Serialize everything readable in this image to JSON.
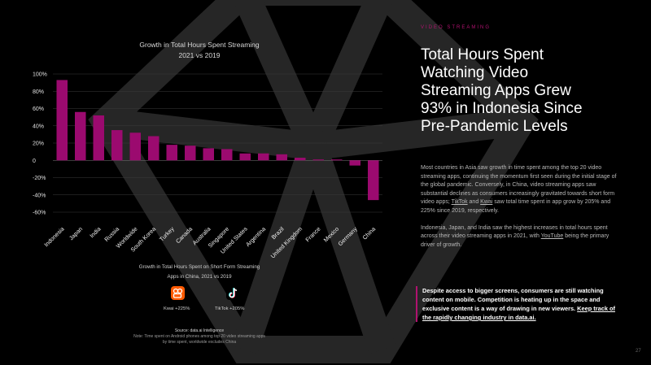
{
  "section_tag": "VIDEO STREAMING",
  "headline": [
    "Total Hours Spent",
    "Watching Video",
    "Streaming Apps Grew",
    "93% in Indonesia Since",
    "Pre-Pandemic Levels"
  ],
  "body": {
    "p1_a": "Most countries in Asia saw growth in time spent among the top 20 video streaming apps, continuing the momentum first seen during the initial stage of the global pandemic. Conversely, in China, video streaming apps saw substantial declines as consumers increasingly gravitated towards short form video apps; ",
    "p1_link1": "TikTok",
    "p1_and": " and ",
    "p1_link2": "Kwai",
    "p1_b": " saw total time spent in app grow by 205% and 225% since 2019, respectively.",
    "p2_a": "Indonesia, Japan, and India saw the highest increases in total hours spent across their video streaming apps in 2021, with ",
    "p2_link": "YouTube",
    "p2_b": " being the primary driver of growth."
  },
  "callout": {
    "text": "Despite access to bigger screens, consumers are still watching content on mobile. Competition is heating up in the space and exclusive content is a way of drawing in new viewers. ",
    "link": "Keep track of the rapidly changing industry in data.ai."
  },
  "chart_data": {
    "type": "bar",
    "title": "Growth in Total Hours Spent Streaming",
    "subtitle": "2021 vs 2019",
    "categories": [
      "Indonesia",
      "Japan",
      "India",
      "Russia",
      "Worldwide",
      "South Korea",
      "Turkey",
      "Canada",
      "Australia",
      "Singapore",
      "United States",
      "Argentina",
      "Brazil",
      "United Kingdom",
      "France",
      "Mexico",
      "Germany",
      "China"
    ],
    "values": [
      93,
      56,
      52,
      35,
      32,
      28,
      18,
      17,
      14,
      13,
      8,
      8,
      7,
      3,
      1,
      1,
      -6,
      -46
    ],
    "ylim": [
      -60,
      100
    ],
    "yticks": [
      100,
      80,
      60,
      40,
      20,
      0,
      -20,
      -40,
      -60
    ],
    "ytick_labels": [
      "100%",
      "80%",
      "60%",
      "40%",
      "20%",
      "0",
      "-20%",
      "-40%",
      "-60%"
    ],
    "bar_color": "#9b0a6f",
    "grid": true
  },
  "short_form": {
    "title_line1": "Growth in Total Hours Spent on Short Form Streaming",
    "title_line2": "Apps in China, 2021 vs 2019",
    "apps": [
      {
        "name": "Kwai",
        "label": "Kwai +225%",
        "icon": "kwai-icon",
        "color": "#ff5a00"
      },
      {
        "name": "TikTok",
        "label": "TikTok +205%",
        "icon": "tiktok-icon",
        "color": "#000000"
      }
    ]
  },
  "source": {
    "line1": "Source: data.ai Intelligence",
    "line2": "Note: Time spent on Android phones among top 20 video streaming apps",
    "line3": "by time spent, worldwide excludes China"
  },
  "page_number": "27",
  "colors": {
    "accent": "#b0126f",
    "background": "#000000"
  }
}
